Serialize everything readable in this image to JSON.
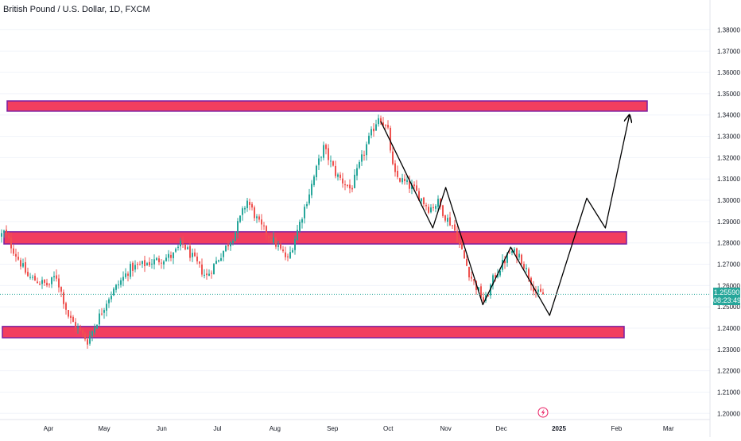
{
  "header": {
    "title": "British Pound / U.S. Dollar, 1D, FXCM"
  },
  "price_tag": {
    "price": "1.25590",
    "countdown": "08:23:49"
  },
  "colors": {
    "up": "#26a69a",
    "down": "#ef5350",
    "zone_fill": "#f23e5f",
    "zone_border": "#7b1fa2",
    "last_price_line": "#26a69a"
  },
  "chart_data": {
    "type": "candlestick",
    "symbol": "British Pound / U.S. Dollar",
    "timeframe": "1D",
    "source": "FXCM",
    "ylim": [
      1.1975,
      1.3865
    ],
    "y_ticks": [
      "1.20000",
      "1.21000",
      "1.22000",
      "1.23000",
      "1.24000",
      "1.25000",
      "1.26000",
      "1.27000",
      "1.28000",
      "1.29000",
      "1.30000",
      "1.31000",
      "1.32000",
      "1.33000",
      "1.34000",
      "1.35000",
      "1.36000",
      "1.37000",
      "1.38000"
    ],
    "x_ticks": [
      "Apr",
      "May",
      "Jun",
      "Jul",
      "Aug",
      "Sep",
      "Oct",
      "Nov",
      "Dec",
      "2025",
      "Feb",
      "Mar"
    ],
    "last_price": 1.2559,
    "zones": [
      {
        "low": 1.3418,
        "high": 1.3466
      },
      {
        "low": 1.2795,
        "high": 1.2852
      },
      {
        "low": 1.2355,
        "high": 1.2408
      }
    ],
    "candle_anchors": [
      {
        "date": "2024-03-01",
        "close": 1.279
      },
      {
        "date": "2024-03-08",
        "close": 1.285
      },
      {
        "date": "2024-03-21",
        "close": 1.264
      },
      {
        "date": "2024-04-01",
        "close": 1.26
      },
      {
        "date": "2024-04-05",
        "close": 1.265
      },
      {
        "date": "2024-04-12",
        "close": 1.245
      },
      {
        "date": "2024-04-22",
        "close": 1.234
      },
      {
        "date": "2024-05-03",
        "close": 1.254
      },
      {
        "date": "2024-05-15",
        "close": 1.268
      },
      {
        "date": "2024-06-07",
        "close": 1.274
      },
      {
        "date": "2024-06-12",
        "close": 1.28
      },
      {
        "date": "2024-06-25",
        "close": 1.264
      },
      {
        "date": "2024-07-10",
        "close": 1.284
      },
      {
        "date": "2024-07-17",
        "close": 1.3
      },
      {
        "date": "2024-07-24",
        "close": 1.288
      },
      {
        "date": "2024-08-01",
        "close": 1.28
      },
      {
        "date": "2024-08-08",
        "close": 1.272
      },
      {
        "date": "2024-08-20",
        "close": 1.305
      },
      {
        "date": "2024-08-27",
        "close": 1.325
      },
      {
        "date": "2024-09-03",
        "close": 1.312
      },
      {
        "date": "2024-09-11",
        "close": 1.305
      },
      {
        "date": "2024-09-19",
        "close": 1.325
      },
      {
        "date": "2024-09-26",
        "close": 1.34
      },
      {
        "date": "2024-10-01",
        "close": 1.332
      },
      {
        "date": "2024-10-04",
        "close": 1.312
      },
      {
        "date": "2024-10-15",
        "close": 1.305
      },
      {
        "date": "2024-10-23",
        "close": 1.296
      },
      {
        "date": "2024-10-28",
        "close": 1.299
      },
      {
        "date": "2024-11-01",
        "close": 1.292
      },
      {
        "date": "2024-11-05",
        "close": 1.288
      },
      {
        "date": "2024-11-14",
        "close": 1.265
      },
      {
        "date": "2024-11-22",
        "close": 1.252
      },
      {
        "date": "2024-11-27",
        "close": 1.264
      },
      {
        "date": "2024-12-06",
        "close": 1.276
      },
      {
        "date": "2024-12-11",
        "close": 1.274
      },
      {
        "date": "2024-12-16",
        "close": 1.264
      },
      {
        "date": "2024-12-20",
        "close": 1.256
      },
      {
        "date": "2024-12-24",
        "close": 1.2559
      }
    ],
    "pattern_lines": [
      [
        {
          "date": "2024-09-27",
          "price": 1.337
        },
        {
          "date": "2024-10-25",
          "price": 1.287
        },
        {
          "date": "2024-11-01",
          "price": 1.306
        },
        {
          "date": "2024-11-21",
          "price": 1.251
        },
        {
          "date": "2024-12-06",
          "price": 1.278
        },
        {
          "date": "2024-12-27",
          "price": 1.246
        },
        {
          "date": "2025-01-16",
          "price": 1.301
        },
        {
          "date": "2025-01-26",
          "price": 1.287
        },
        {
          "date": "2025-02-08",
          "price": 1.34
        }
      ]
    ]
  }
}
